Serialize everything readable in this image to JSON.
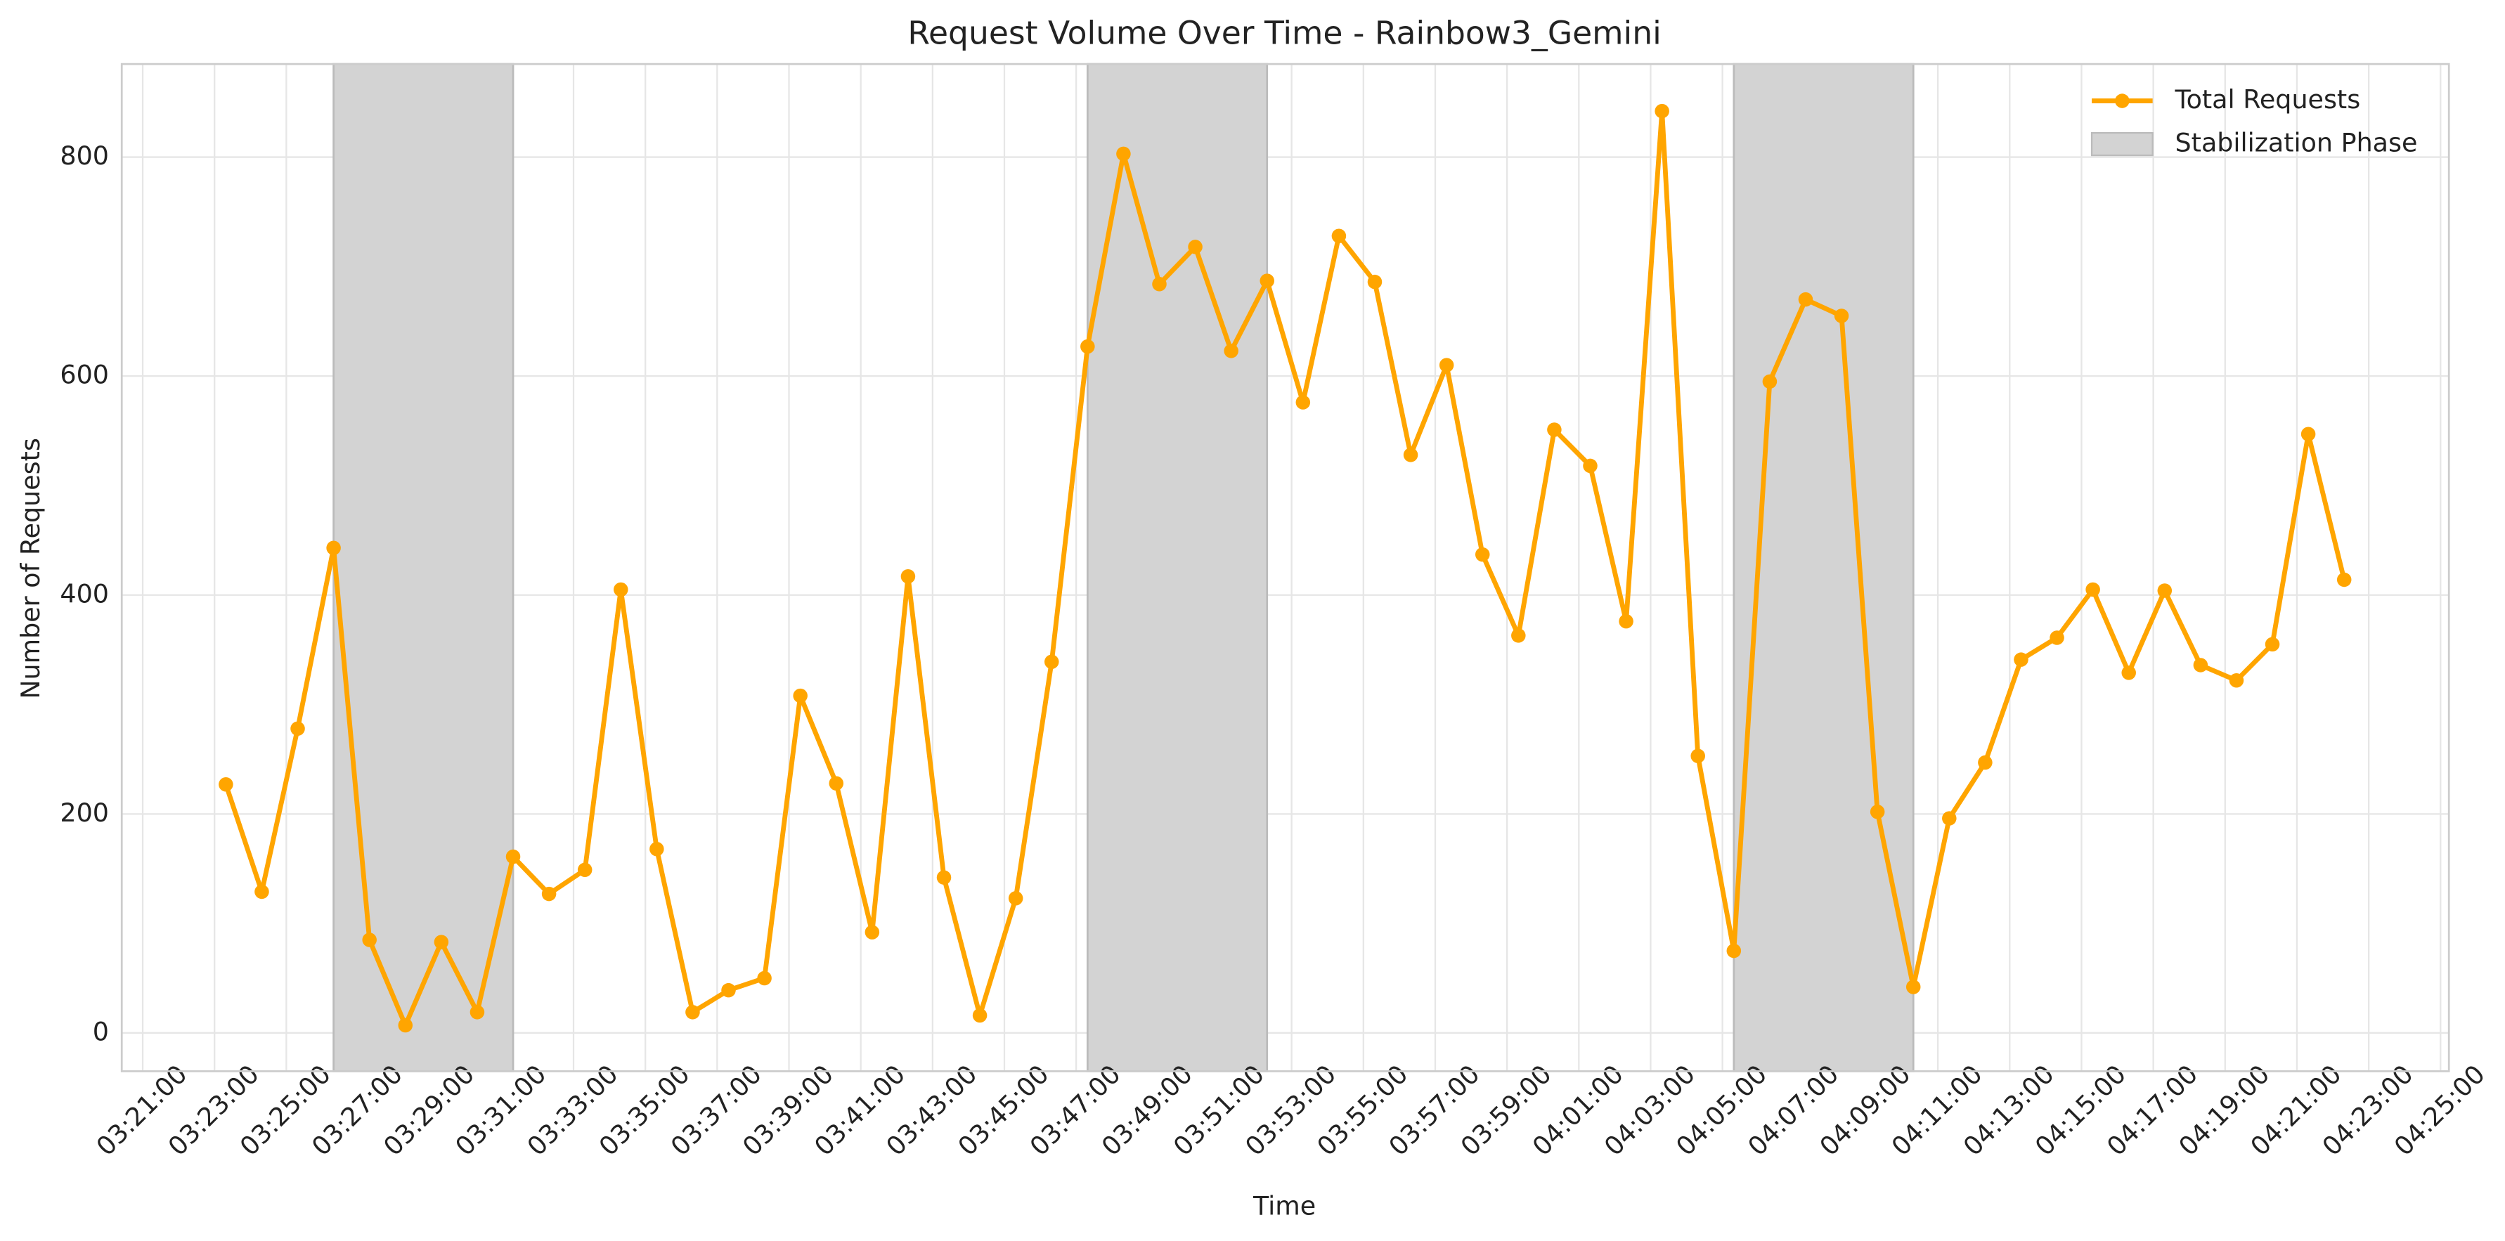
{
  "chart_data": {
    "type": "line",
    "title": "Request Volume Over Time - Rainbow3_Gemini",
    "xlabel": "Time",
    "ylabel": "Number of Requests",
    "x": [
      "03:23:19",
      "03:24:19",
      "03:25:19",
      "03:26:19",
      "03:27:19",
      "03:28:19",
      "03:29:19",
      "03:30:19",
      "03:31:19",
      "03:32:19",
      "03:33:19",
      "03:34:19",
      "03:35:19",
      "03:36:19",
      "03:37:19",
      "03:38:19",
      "03:39:19",
      "03:40:19",
      "03:41:19",
      "03:42:19",
      "03:43:19",
      "03:44:19",
      "03:45:19",
      "03:46:19",
      "03:47:19",
      "03:48:19",
      "03:49:19",
      "03:50:19",
      "03:51:19",
      "03:52:19",
      "03:53:19",
      "03:54:19",
      "03:55:19",
      "03:56:19",
      "03:57:19",
      "03:58:19",
      "03:59:19",
      "04:00:19",
      "04:01:19",
      "04:02:19",
      "04:03:19",
      "04:04:19",
      "04:05:19",
      "04:06:19",
      "04:07:19",
      "04:08:19",
      "04:09:19",
      "04:10:19",
      "04:11:19",
      "04:12:19",
      "04:13:19",
      "04:14:19",
      "04:15:19",
      "04:16:19",
      "04:17:19",
      "04:18:19",
      "04:19:19",
      "04:20:19",
      "04:21:19",
      "04:22:19"
    ],
    "series": [
      {
        "name": "Total Requests",
        "color": "#ffa500",
        "values": [
          227,
          129,
          278,
          443,
          85,
          7,
          83,
          19,
          161,
          127,
          149,
          405,
          168,
          19,
          39,
          50,
          308,
          228,
          92,
          417,
          142,
          16,
          123,
          339,
          627,
          803,
          684,
          718,
          623,
          687,
          576,
          728,
          686,
          528,
          610,
          437,
          363,
          551,
          518,
          376,
          842,
          253,
          75,
          595,
          670,
          655,
          202,
          42,
          196,
          247,
          341,
          361,
          405,
          329,
          404,
          336,
          322,
          355,
          547,
          414
        ]
      }
    ],
    "spans": {
      "name": "Stabilization Phase",
      "color": "#d3d3d3",
      "ranges": [
        [
          "03:26:19",
          "03:31:19"
        ],
        [
          "03:47:19",
          "03:52:19"
        ],
        [
          "04:05:19",
          "04:10:19"
        ],
        [
          "04:22:19",
          "04:22:19"
        ]
      ]
    },
    "xlim": [
      "03:20:25",
      "04:25:14"
    ],
    "xticks": [
      "03:21:00",
      "03:23:00",
      "03:25:00",
      "03:27:00",
      "03:29:00",
      "03:31:00",
      "03:33:00",
      "03:35:00",
      "03:37:00",
      "03:39:00",
      "03:41:00",
      "03:43:00",
      "03:45:00",
      "03:47:00",
      "03:49:00",
      "03:51:00",
      "03:53:00",
      "03:55:00",
      "03:57:00",
      "03:59:00",
      "04:01:00",
      "04:03:00",
      "04:05:00",
      "04:07:00",
      "04:09:00",
      "04:11:00",
      "04:13:00",
      "04:15:00",
      "04:17:00",
      "04:19:00",
      "04:21:00",
      "04:23:00",
      "04:25:00"
    ],
    "ylim": [
      -35,
      885
    ],
    "yticks": [
      0,
      200,
      400,
      600,
      800
    ],
    "grid": true,
    "legend": "upper right"
  }
}
